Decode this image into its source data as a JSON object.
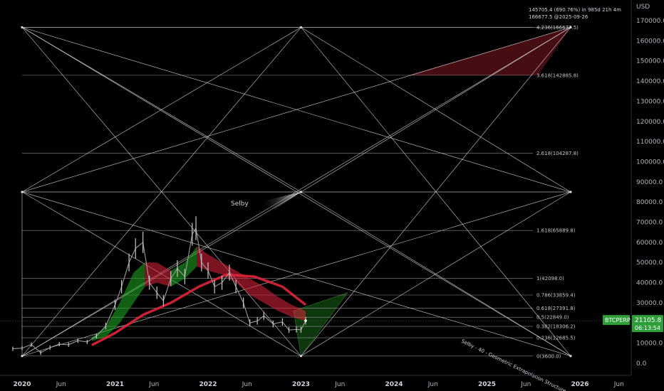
{
  "chart_data": {
    "type": "line",
    "title": "",
    "xlabel": "",
    "ylabel": "",
    "axis_unit": "USD",
    "ylim": [
      -5000,
      180000
    ],
    "xlim": [
      2020.0,
      2026.75
    ],
    "grid": false,
    "y_ticks": [
      {
        "value": 0,
        "label": "0.0"
      },
      {
        "value": 10000,
        "label": "10000.0"
      },
      {
        "value": 20000,
        "label": "20000.0"
      },
      {
        "value": 30000,
        "label": "30000.0"
      },
      {
        "value": 40000,
        "label": "40000.0"
      },
      {
        "value": 50000,
        "label": "50000.0"
      },
      {
        "value": 60000,
        "label": "60000.0"
      },
      {
        "value": 70000,
        "label": "70000.0"
      },
      {
        "value": 80000,
        "label": "80000.0"
      },
      {
        "value": 90000,
        "label": "90000.0"
      },
      {
        "value": 100000,
        "label": "100000.0"
      },
      {
        "value": 110000,
        "label": "110000.0"
      },
      {
        "value": 120000,
        "label": "120000.0"
      },
      {
        "value": 130000,
        "label": "130000.0"
      },
      {
        "value": 140000,
        "label": "140000.0"
      },
      {
        "value": 150000,
        "label": "150000.0"
      },
      {
        "value": 160000,
        "label": "160000.0"
      },
      {
        "value": 170000,
        "label": "170000.0"
      }
    ],
    "x_ticks": [
      {
        "value": 2020.0,
        "label": "2020",
        "bold": true
      },
      {
        "value": 2020.42,
        "label": "Jun",
        "bold": false
      },
      {
        "value": 2021.0,
        "label": "2021",
        "bold": true
      },
      {
        "value": 2021.42,
        "label": "Jun",
        "bold": false
      },
      {
        "value": 2022.0,
        "label": "2022",
        "bold": true
      },
      {
        "value": 2022.42,
        "label": "Jun",
        "bold": false
      },
      {
        "value": 2023.0,
        "label": "2023",
        "bold": true
      },
      {
        "value": 2023.42,
        "label": "Jun",
        "bold": false
      },
      {
        "value": 2024.0,
        "label": "2024",
        "bold": true
      },
      {
        "value": 2024.42,
        "label": "Jun",
        "bold": false
      },
      {
        "value": 2025.0,
        "label": "2025",
        "bold": true
      },
      {
        "value": 2025.42,
        "label": "Jun",
        "bold": false
      },
      {
        "value": 2026.0,
        "label": "2026",
        "bold": true
      },
      {
        "value": 2026.42,
        "label": "Jun",
        "bold": false
      }
    ],
    "fib_levels": [
      {
        "value": 3600,
        "label": "0(3600.0)"
      },
      {
        "value": 12685.5,
        "label": "0.236(12685.5)"
      },
      {
        "value": 18306.2,
        "label": "0.382(18306.2)"
      },
      {
        "value": 22849.0,
        "label": "0.5(22849.0)"
      },
      {
        "value": 27391.8,
        "label": "0.618(27391.8)"
      },
      {
        "value": 33859.4,
        "label": "0.786(33859.4)"
      },
      {
        "value": 42098.0,
        "label": "1(42098.0)"
      },
      {
        "value": 65889.8,
        "label": "1.618(65889.8)"
      },
      {
        "value": 104287.8,
        "label": "2.618(104287.8)"
      },
      {
        "value": 142885.8,
        "label": "3.618(142885.8)"
      },
      {
        "value": 166677.5,
        "label": "4.236(166677.5)"
      }
    ],
    "geometry_nodes": [
      {
        "id": "TL",
        "x": 2020.0,
        "y": 166677.5
      },
      {
        "id": "TC",
        "x": 2023.0,
        "y": 166677.5
      },
      {
        "id": "TR",
        "x": 2025.9,
        "y": 166677.5
      },
      {
        "id": "ML",
        "x": 2020.0,
        "y": 85000
      },
      {
        "id": "MC",
        "x": 2023.0,
        "y": 85000
      },
      {
        "id": "MR",
        "x": 2025.9,
        "y": 85000
      },
      {
        "id": "BL",
        "x": 2020.0,
        "y": 3600
      },
      {
        "id": "BC",
        "x": 2023.0,
        "y": 3600
      },
      {
        "id": "BR",
        "x": 2025.9,
        "y": 3600
      }
    ],
    "geometry_lines": [
      [
        "TL",
        "TC"
      ],
      [
        "TC",
        "TR"
      ],
      [
        "ML",
        "MC"
      ],
      [
        "MC",
        "MR"
      ],
      [
        "TL",
        "MC"
      ],
      [
        "TC",
        "ML"
      ],
      [
        "TC",
        "MR"
      ],
      [
        "TR",
        "MC"
      ],
      [
        "ML",
        "BC"
      ],
      [
        "BL",
        "MC"
      ],
      [
        "MC",
        "BR"
      ],
      [
        "BC",
        "MR"
      ],
      [
        "TL",
        "BC"
      ],
      [
        "TC",
        "BL"
      ],
      [
        "TC",
        "BR"
      ],
      [
        "TR",
        "BC"
      ],
      [
        "TL",
        "MR"
      ],
      [
        "ML",
        "TR"
      ],
      [
        "ML",
        "BR"
      ],
      [
        "BL",
        "MR"
      ],
      [
        "BL",
        "TR"
      ],
      [
        "TL",
        "BR"
      ],
      [
        "ML",
        "BL"
      ]
    ],
    "btc_price": [
      {
        "x": 2019.9,
        "y": 7200
      },
      {
        "x": 2020.0,
        "y": 7500
      },
      {
        "x": 2020.1,
        "y": 9300
      },
      {
        "x": 2020.2,
        "y": 5200
      },
      {
        "x": 2020.3,
        "y": 7800
      },
      {
        "x": 2020.4,
        "y": 9500
      },
      {
        "x": 2020.5,
        "y": 9200
      },
      {
        "x": 2020.6,
        "y": 11200
      },
      {
        "x": 2020.7,
        "y": 10600
      },
      {
        "x": 2020.8,
        "y": 13500
      },
      {
        "x": 2020.9,
        "y": 18500
      },
      {
        "x": 2021.0,
        "y": 29000
      },
      {
        "x": 2021.07,
        "y": 38000
      },
      {
        "x": 2021.15,
        "y": 50000
      },
      {
        "x": 2021.22,
        "y": 57000
      },
      {
        "x": 2021.3,
        "y": 60000
      },
      {
        "x": 2021.37,
        "y": 40000
      },
      {
        "x": 2021.45,
        "y": 35000
      },
      {
        "x": 2021.52,
        "y": 31000
      },
      {
        "x": 2021.6,
        "y": 42000
      },
      {
        "x": 2021.67,
        "y": 47000
      },
      {
        "x": 2021.75,
        "y": 43000
      },
      {
        "x": 2021.83,
        "y": 64000
      },
      {
        "x": 2021.87,
        "y": 67000
      },
      {
        "x": 2021.93,
        "y": 50000
      },
      {
        "x": 2022.0,
        "y": 46000
      },
      {
        "x": 2022.07,
        "y": 38000
      },
      {
        "x": 2022.15,
        "y": 40000
      },
      {
        "x": 2022.23,
        "y": 45000
      },
      {
        "x": 2022.3,
        "y": 38000
      },
      {
        "x": 2022.38,
        "y": 30000
      },
      {
        "x": 2022.45,
        "y": 20000
      },
      {
        "x": 2022.53,
        "y": 21000
      },
      {
        "x": 2022.6,
        "y": 23500
      },
      {
        "x": 2022.7,
        "y": 19500
      },
      {
        "x": 2022.8,
        "y": 20500
      },
      {
        "x": 2022.87,
        "y": 16500
      },
      {
        "x": 2022.95,
        "y": 16800
      },
      {
        "x": 2023.0,
        "y": 16600
      },
      {
        "x": 2023.05,
        "y": 21105.8
      }
    ],
    "price_change_note": "145705.4 (690.76%) in 985d 21h 4m",
    "target_note": "166677.5 @2025-09-26",
    "selby_label": "Selby",
    "structure_label": "Selby - 40 - Geometric Extrapolation Structure",
    "symbol": "BTCPERP",
    "last_price": "21105.8",
    "countdown": "06:13:54",
    "last_price_value": 21105.8,
    "colors": {
      "background": "#000000",
      "structure_lines": "#d0d0d0",
      "upper_target_fill": "#4a0f14",
      "lower_target_fill": "#0f3a0f",
      "ribbon_green": "#1fae24",
      "ribbon_red": "#e0243a",
      "symbol_badge": "#2e9e3a",
      "price_candles": "#9a9a9a"
    }
  }
}
